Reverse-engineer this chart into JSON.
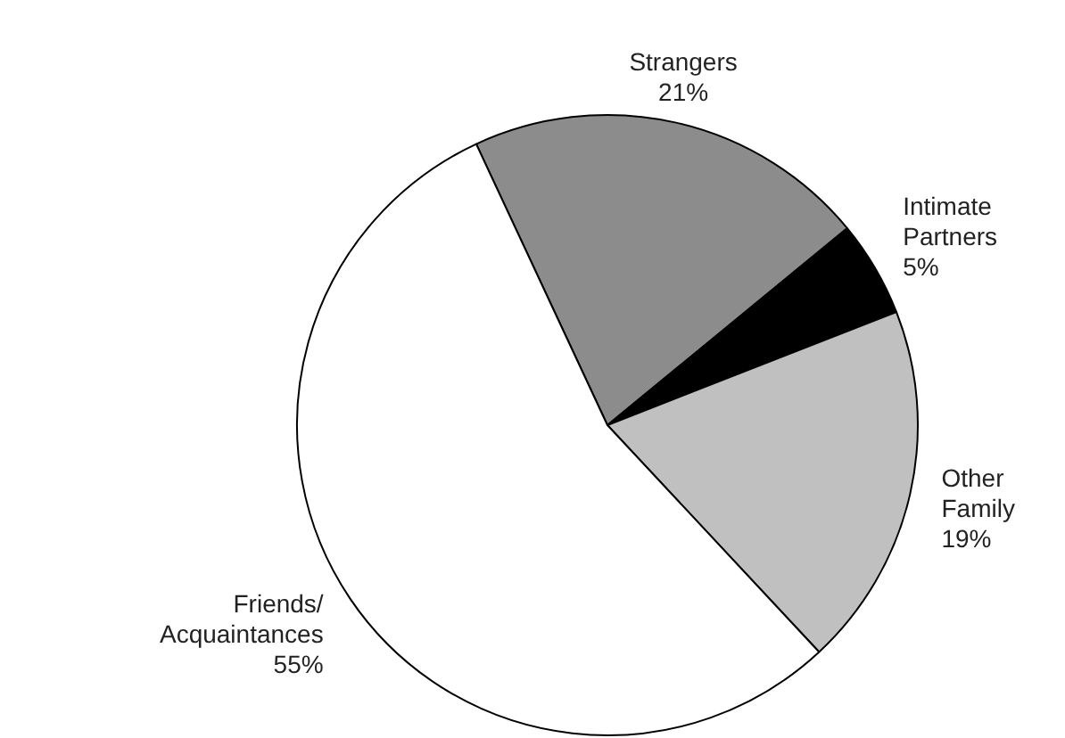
{
  "chart_data": {
    "type": "pie",
    "categories": [
      "Strangers",
      "Intimate Partners",
      "Other Family",
      "Friends/ Acquaintances"
    ],
    "values": [
      21,
      5,
      19,
      55
    ],
    "value_labels": [
      "21%",
      "5%",
      "19%",
      "55%"
    ],
    "colors": [
      "#8c8c8c",
      "#000000",
      "#c0c0c0",
      "#ffffff"
    ]
  }
}
